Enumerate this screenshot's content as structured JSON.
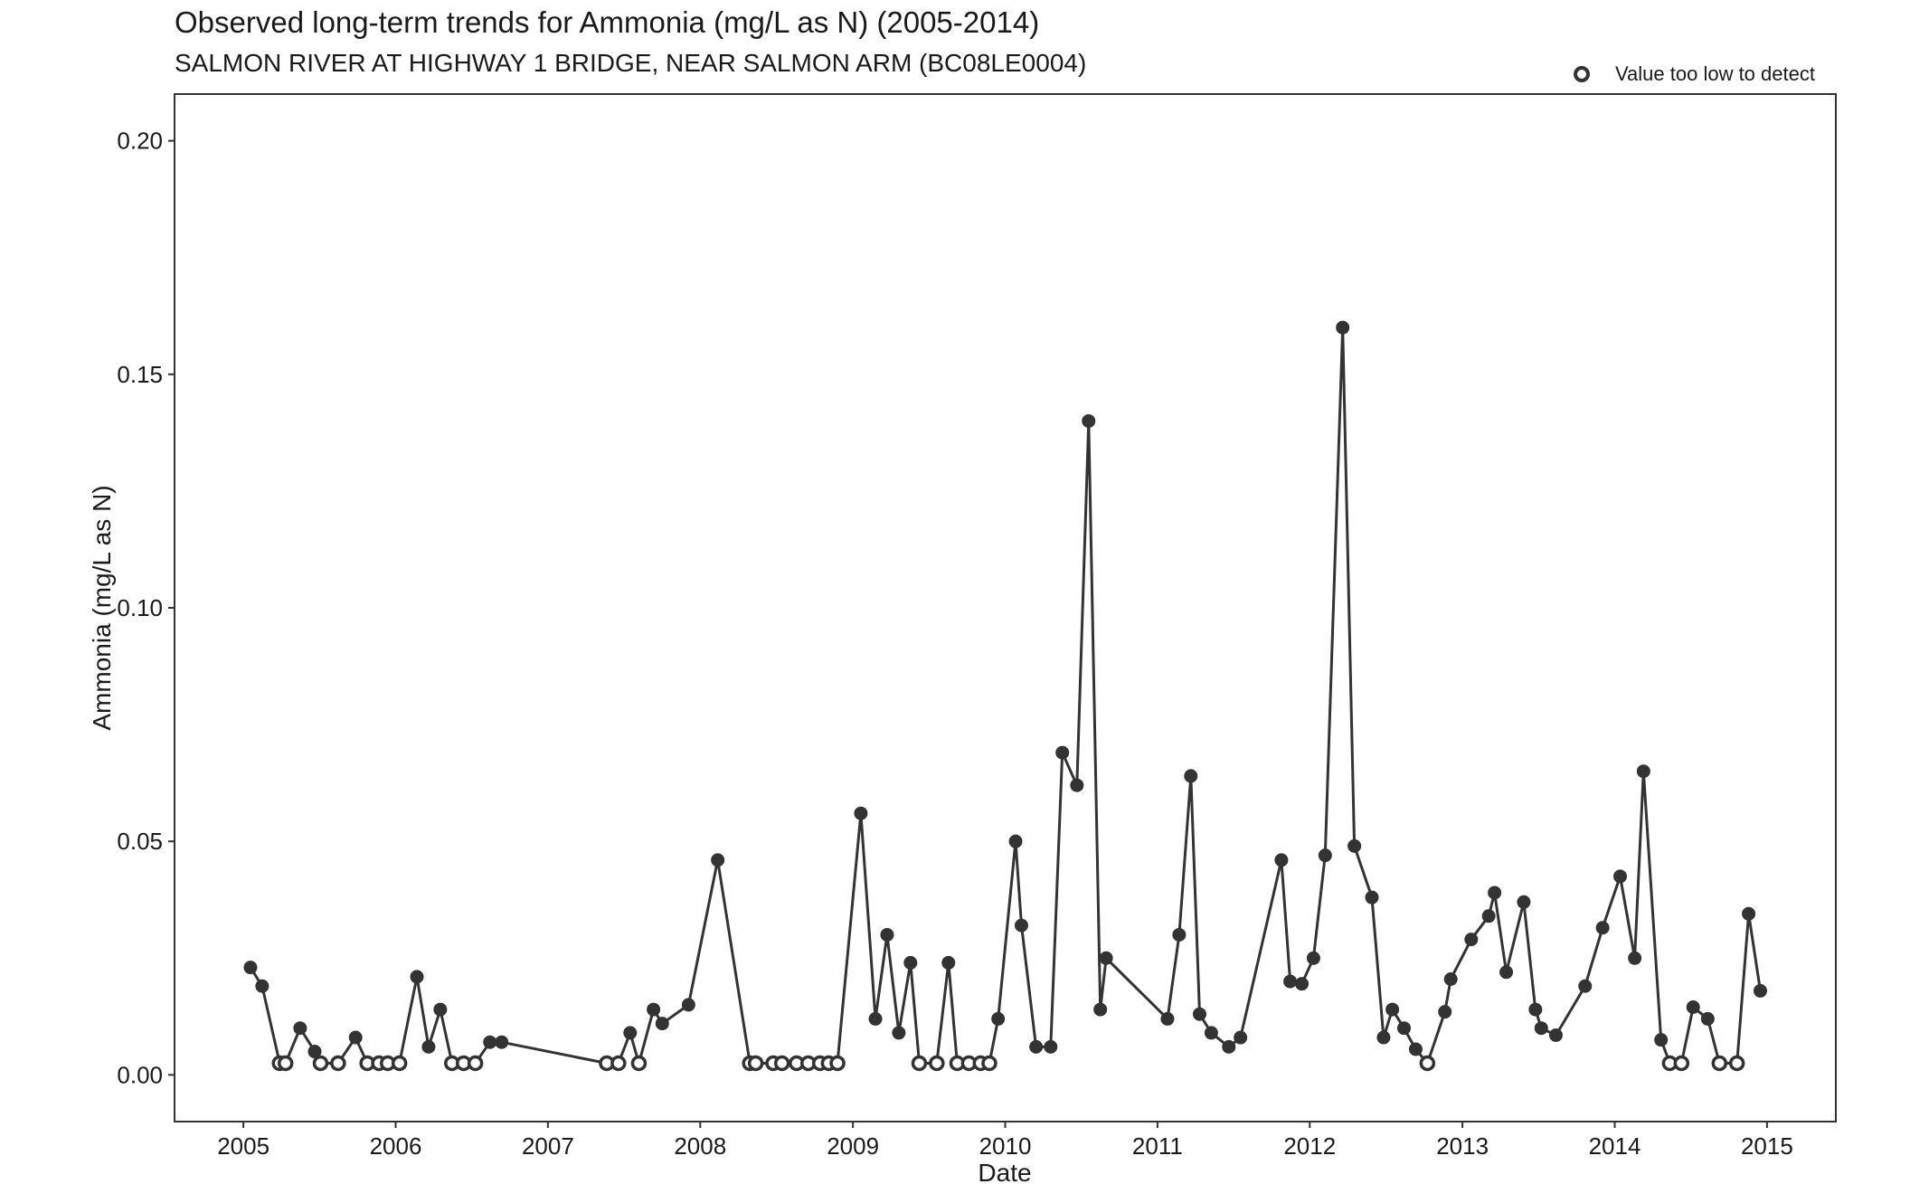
{
  "chart_data": {
    "type": "scatter",
    "title": "Observed long-term trends for Ammonia (mg/L as N) (2005-2014)",
    "subtitle": "SALMON RIVER AT HIGHWAY 1 BRIDGE, NEAR SALMON ARM (BC08LE0004)",
    "xlabel": "Date",
    "ylabel": "Ammonia (mg/L as N)",
    "xlim": [
      "2004-07-20",
      "2015-06-15"
    ],
    "ylim": [
      -0.01,
      0.21
    ],
    "x_ticks": [
      "2005",
      "2006",
      "2007",
      "2008",
      "2009",
      "2010",
      "2011",
      "2012",
      "2013",
      "2014",
      "2015"
    ],
    "y_ticks": [
      "0.00",
      "0.05",
      "0.10",
      "0.15",
      "0.20"
    ],
    "grid": false,
    "line_color": "#333333",
    "legend": {
      "position": "top-right",
      "entries": [
        {
          "label": "Value too low to detect",
          "marker": "open-circle"
        }
      ]
    },
    "series": [
      {
        "points": [
          {
            "x": "2005-01-18",
            "y": 0.023,
            "detected": true
          },
          {
            "x": "2005-02-15",
            "y": 0.019,
            "detected": true
          },
          {
            "x": "2005-03-29",
            "y": 0.0025,
            "detected": false
          },
          {
            "x": "2005-04-12",
            "y": 0.0025,
            "detected": false
          },
          {
            "x": "2005-05-17",
            "y": 0.01,
            "detected": true
          },
          {
            "x": "2005-06-21",
            "y": 0.005,
            "detected": true
          },
          {
            "x": "2005-07-05",
            "y": 0.0025,
            "detected": false
          },
          {
            "x": "2005-08-16",
            "y": 0.0025,
            "detected": false
          },
          {
            "x": "2005-09-27",
            "y": 0.008,
            "detected": true
          },
          {
            "x": "2005-10-25",
            "y": 0.0025,
            "detected": false
          },
          {
            "x": "2005-11-22",
            "y": 0.0025,
            "detected": false
          },
          {
            "x": "2005-12-13",
            "y": 0.0025,
            "detected": false
          },
          {
            "x": "2006-01-10",
            "y": 0.0025,
            "detected": false
          },
          {
            "x": "2006-02-21",
            "y": 0.021,
            "detected": true
          },
          {
            "x": "2006-03-21",
            "y": 0.006,
            "detected": true
          },
          {
            "x": "2006-04-18",
            "y": 0.014,
            "detected": true
          },
          {
            "x": "2006-05-16",
            "y": 0.0025,
            "detected": false
          },
          {
            "x": "2006-06-13",
            "y": 0.0025,
            "detected": false
          },
          {
            "x": "2006-07-11",
            "y": 0.0025,
            "detected": false
          },
          {
            "x": "2006-08-15",
            "y": 0.007,
            "detected": true
          },
          {
            "x": "2006-09-12",
            "y": 0.007,
            "detected": true
          },
          {
            "x": "2007-05-22",
            "y": 0.0025,
            "detected": false
          },
          {
            "x": "2007-06-19",
            "y": 0.0025,
            "detected": false
          },
          {
            "x": "2007-07-17",
            "y": 0.009,
            "detected": true
          },
          {
            "x": "2007-08-07",
            "y": 0.0025,
            "detected": false
          },
          {
            "x": "2007-09-11",
            "y": 0.014,
            "detected": true
          },
          {
            "x": "2007-10-02",
            "y": 0.011,
            "detected": true
          },
          {
            "x": "2007-12-04",
            "y": 0.015,
            "detected": true
          },
          {
            "x": "2008-02-12",
            "y": 0.046,
            "detected": true
          },
          {
            "x": "2008-04-29",
            "y": 0.0025,
            "detected": false
          },
          {
            "x": "2008-05-13",
            "y": 0.0025,
            "detected": false
          },
          {
            "x": "2008-06-24",
            "y": 0.0025,
            "detected": false
          },
          {
            "x": "2008-07-15",
            "y": 0.0025,
            "detected": false
          },
          {
            "x": "2008-08-19",
            "y": 0.0025,
            "detected": false
          },
          {
            "x": "2008-09-16",
            "y": 0.0025,
            "detected": false
          },
          {
            "x": "2008-10-14",
            "y": 0.0025,
            "detected": false
          },
          {
            "x": "2008-11-04",
            "y": 0.0025,
            "detected": false
          },
          {
            "x": "2008-11-25",
            "y": 0.0025,
            "detected": false
          },
          {
            "x": "2009-01-20",
            "y": 0.056,
            "detected": true
          },
          {
            "x": "2009-02-24",
            "y": 0.012,
            "detected": true
          },
          {
            "x": "2009-03-24",
            "y": 0.03,
            "detected": true
          },
          {
            "x": "2009-04-21",
            "y": 0.009,
            "detected": true
          },
          {
            "x": "2009-05-19",
            "y": 0.024,
            "detected": true
          },
          {
            "x": "2009-06-09",
            "y": 0.0025,
            "detected": false
          },
          {
            "x": "2009-07-21",
            "y": 0.0025,
            "detected": false
          },
          {
            "x": "2009-08-18",
            "y": 0.024,
            "detected": true
          },
          {
            "x": "2009-09-08",
            "y": 0.0025,
            "detected": false
          },
          {
            "x": "2009-10-06",
            "y": 0.0025,
            "detected": false
          },
          {
            "x": "2009-11-03",
            "y": 0.0025,
            "detected": false
          },
          {
            "x": "2009-11-24",
            "y": 0.0025,
            "detected": false
          },
          {
            "x": "2009-12-15",
            "y": 0.012,
            "detected": true
          },
          {
            "x": "2010-01-26",
            "y": 0.05,
            "detected": true
          },
          {
            "x": "2010-02-09",
            "y": 0.032,
            "detected": true
          },
          {
            "x": "2010-03-16",
            "y": 0.006,
            "detected": true
          },
          {
            "x": "2010-04-20",
            "y": 0.006,
            "detected": true
          },
          {
            "x": "2010-05-18",
            "y": 0.069,
            "detected": true
          },
          {
            "x": "2010-06-22",
            "y": 0.062,
            "detected": true
          },
          {
            "x": "2010-07-20",
            "y": 0.14,
            "detected": true
          },
          {
            "x": "2010-08-17",
            "y": 0.014,
            "detected": true
          },
          {
            "x": "2010-08-31",
            "y": 0.025,
            "detected": true
          },
          {
            "x": "2011-01-25",
            "y": 0.012,
            "detected": true
          },
          {
            "x": "2011-02-22",
            "y": 0.03,
            "detected": true
          },
          {
            "x": "2011-03-22",
            "y": 0.064,
            "detected": true
          },
          {
            "x": "2011-04-12",
            "y": 0.013,
            "detected": true
          },
          {
            "x": "2011-05-10",
            "y": 0.009,
            "detected": true
          },
          {
            "x": "2011-06-21",
            "y": 0.006,
            "detected": true
          },
          {
            "x": "2011-07-19",
            "y": 0.008,
            "detected": true
          },
          {
            "x": "2011-10-25",
            "y": 0.046,
            "detected": true
          },
          {
            "x": "2011-11-15",
            "y": 0.02,
            "detected": true
          },
          {
            "x": "2011-12-13",
            "y": 0.0195,
            "detected": true
          },
          {
            "x": "2012-01-10",
            "y": 0.025,
            "detected": true
          },
          {
            "x": "2012-02-07",
            "y": 0.047,
            "detected": true
          },
          {
            "x": "2012-03-20",
            "y": 0.16,
            "detected": true
          },
          {
            "x": "2012-04-17",
            "y": 0.049,
            "detected": true
          },
          {
            "x": "2012-05-29",
            "y": 0.038,
            "detected": true
          },
          {
            "x": "2012-06-26",
            "y": 0.008,
            "detected": true
          },
          {
            "x": "2012-07-17",
            "y": 0.014,
            "detected": true
          },
          {
            "x": "2012-08-14",
            "y": 0.01,
            "detected": true
          },
          {
            "x": "2012-09-11",
            "y": 0.0055,
            "detected": true
          },
          {
            "x": "2012-10-09",
            "y": 0.0025,
            "detected": false
          },
          {
            "x": "2012-11-20",
            "y": 0.0135,
            "detected": true
          },
          {
            "x": "2012-12-04",
            "y": 0.0205,
            "detected": true
          },
          {
            "x": "2013-01-22",
            "y": 0.029,
            "detected": true
          },
          {
            "x": "2013-03-05",
            "y": 0.034,
            "detected": true
          },
          {
            "x": "2013-03-19",
            "y": 0.039,
            "detected": true
          },
          {
            "x": "2013-04-16",
            "y": 0.022,
            "detected": true
          },
          {
            "x": "2013-05-28",
            "y": 0.037,
            "detected": true
          },
          {
            "x": "2013-06-25",
            "y": 0.014,
            "detected": true
          },
          {
            "x": "2013-07-09",
            "y": 0.01,
            "detected": true
          },
          {
            "x": "2013-08-13",
            "y": 0.0085,
            "detected": true
          },
          {
            "x": "2013-10-22",
            "y": 0.019,
            "detected": true
          },
          {
            "x": "2013-12-03",
            "y": 0.0315,
            "detected": true
          },
          {
            "x": "2014-01-14",
            "y": 0.0425,
            "detected": true
          },
          {
            "x": "2014-02-18",
            "y": 0.025,
            "detected": true
          },
          {
            "x": "2014-03-11",
            "y": 0.065,
            "detected": true
          },
          {
            "x": "2014-04-22",
            "y": 0.0075,
            "detected": true
          },
          {
            "x": "2014-05-13",
            "y": 0.0025,
            "detected": false
          },
          {
            "x": "2014-06-10",
            "y": 0.0025,
            "detected": false
          },
          {
            "x": "2014-07-08",
            "y": 0.0145,
            "detected": true
          },
          {
            "x": "2014-08-12",
            "y": 0.012,
            "detected": true
          },
          {
            "x": "2014-09-09",
            "y": 0.0025,
            "detected": false
          },
          {
            "x": "2014-10-21",
            "y": 0.0025,
            "detected": false
          },
          {
            "x": "2014-11-18",
            "y": 0.0345,
            "detected": true
          },
          {
            "x": "2014-12-16",
            "y": 0.018,
            "detected": true
          }
        ]
      }
    ]
  }
}
